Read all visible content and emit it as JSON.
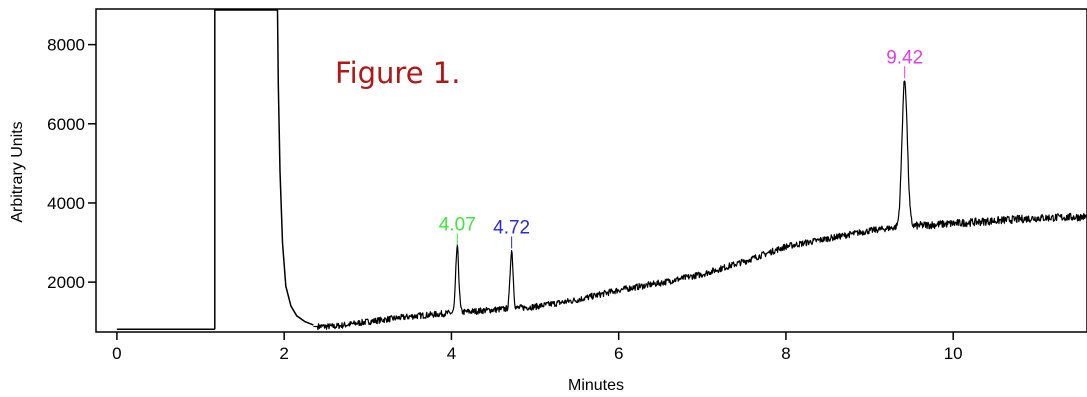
{
  "chart_data": {
    "type": "line",
    "title": "Figure 1.",
    "title_color": "#b01818",
    "xlabel": "Minutes",
    "ylabel": "Arbitrary Units",
    "xlim": [
      -0.25,
      11.6
    ],
    "ylim": [
      740,
      8900
    ],
    "xticks": [
      0,
      2,
      4,
      6,
      8,
      10
    ],
    "yticks": [
      2000,
      4000,
      6000,
      8000
    ],
    "xtick_labels": [
      "0",
      "2",
      "4",
      "6",
      "8",
      "10"
    ],
    "ytick_labels": [
      "2000",
      "4000",
      "6000",
      "8000"
    ],
    "grid": false,
    "line_color": "#000000",
    "baseline": [
      [
        0.0,
        810
      ],
      [
        1.17,
        810
      ],
      [
        1.28,
        1500
      ],
      [
        1.6,
        1080
      ],
      [
        2.05,
        1020
      ],
      [
        2.3,
        880
      ],
      [
        2.6,
        880
      ],
      [
        3.0,
        1000
      ],
      [
        3.5,
        1130
      ],
      [
        4.0,
        1220
      ],
      [
        4.5,
        1300
      ],
      [
        5.0,
        1380
      ],
      [
        5.5,
        1550
      ],
      [
        6.0,
        1800
      ],
      [
        6.5,
        1980
      ],
      [
        7.0,
        2200
      ],
      [
        7.5,
        2520
      ],
      [
        8.0,
        2900
      ],
      [
        8.5,
        3100
      ],
      [
        9.0,
        3300
      ],
      [
        9.3,
        3380
      ],
      [
        9.6,
        3430
      ],
      [
        10.0,
        3480
      ],
      [
        10.5,
        3550
      ],
      [
        11.0,
        3620
      ],
      [
        11.6,
        3650
      ]
    ],
    "solvent_front": [
      [
        1.17,
        810
      ],
      [
        1.17,
        8900
      ],
      [
        1.92,
        8900
      ],
      [
        1.93,
        7000
      ],
      [
        1.95,
        4800
      ],
      [
        1.98,
        3000
      ],
      [
        2.02,
        1900
      ],
      [
        2.08,
        1400
      ],
      [
        2.15,
        1150
      ],
      [
        2.25,
        1000
      ],
      [
        2.35,
        920
      ]
    ],
    "peaks": [
      {
        "rt": 4.07,
        "label": "4.07",
        "height": 2880,
        "width": 0.018,
        "color": "#3ee63e"
      },
      {
        "rt": 4.72,
        "label": "4.72",
        "height": 2800,
        "width": 0.018,
        "color": "#2a2ad8"
      },
      {
        "rt": 9.42,
        "label": "9.42",
        "height": 7100,
        "width": 0.032,
        "color": "#e040e0"
      }
    ]
  }
}
